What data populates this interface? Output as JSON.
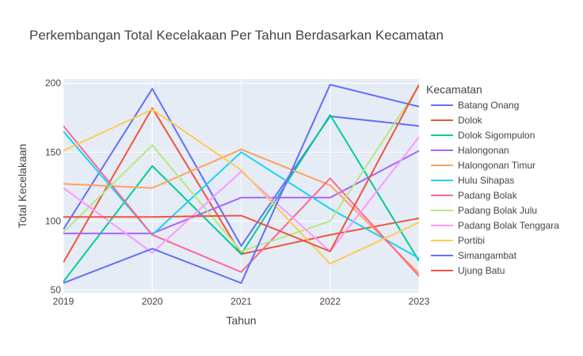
{
  "chart_data": {
    "type": "line",
    "title": "Perkembangan Total Kecelakaan Per Tahun Berdasarkan Kecamatan",
    "xlabel": "Tahun",
    "ylabel": "Total Kecelakaan",
    "x": [
      2019,
      2020,
      2021,
      2022,
      2023
    ],
    "x_tick_labels": [
      "2019",
      "2020",
      "2021",
      "2022",
      "2023"
    ],
    "y_ticks": [
      50,
      100,
      150,
      200
    ],
    "y_tick_labels": [
      "50",
      "100",
      "150",
      "200"
    ],
    "xlim": [
      2019,
      2023
    ],
    "ylim": [
      48,
      203
    ],
    "grid": true,
    "legend_title": "Kecamatan",
    "legend_position": "right",
    "plot_background": "#e5ecf6",
    "series": [
      {
        "name": "Batang Onang",
        "color": "#636efa",
        "values": [
          94,
          196,
          82,
          176,
          169
        ]
      },
      {
        "name": "Dolok",
        "color": "#ef553b",
        "values": [
          70,
          182,
          76,
          90,
          102
        ]
      },
      {
        "name": "Dolok Sigompulon",
        "color": "#00cc96",
        "values": [
          56,
          140,
          76,
          177,
          71
        ]
      },
      {
        "name": "Halongonan",
        "color": "#ab63fa",
        "values": [
          91,
          91,
          117,
          117,
          151
        ]
      },
      {
        "name": "Halongonan Timur",
        "color": "#ffa15a",
        "values": [
          127,
          124,
          152,
          126,
          62
        ]
      },
      {
        "name": "Hulu Sihapas",
        "color": "#19d3f3",
        "values": [
          165,
          90,
          150,
          109,
          73
        ]
      },
      {
        "name": "Padang Bolak",
        "color": "#ff6692",
        "values": [
          169,
          90,
          63,
          131,
          60
        ]
      },
      {
        "name": "Padang Bolak Julu",
        "color": "#b6e880",
        "values": [
          92,
          155,
          78,
          100,
          198
        ]
      },
      {
        "name": "Padang Bolak Tenggara",
        "color": "#ff97ff",
        "values": [
          124,
          77,
          136,
          78,
          161
        ]
      },
      {
        "name": "Portibi",
        "color": "#fecb52",
        "values": [
          151,
          181,
          137,
          69,
          99
        ]
      },
      {
        "name": "Simangambat",
        "color": "#636efa",
        "values": [
          55,
          80,
          55,
          199,
          183
        ]
      },
      {
        "name": "Ujung Batu",
        "color": "#ef553b",
        "values": [
          103,
          103,
          104,
          78,
          199
        ]
      }
    ]
  }
}
